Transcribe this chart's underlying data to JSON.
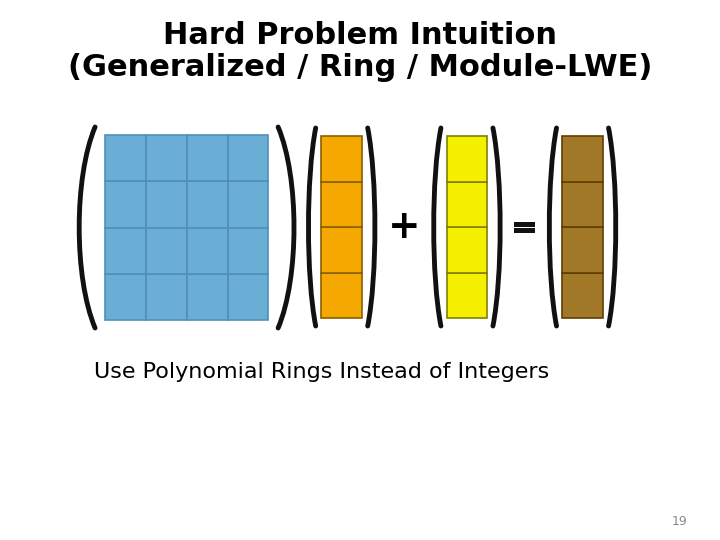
{
  "title_line1": "Hard Problem Intuition",
  "title_line2": "(Generalized / Ring / Module-LWE)",
  "subtitle": "Use Polynomial Rings Instead of Integers",
  "page_number": "19",
  "bg_color": "#ffffff",
  "title_fontsize": 22,
  "subtitle_fontsize": 16,
  "page_fontsize": 9,
  "matrix_color": "#6aaed6",
  "matrix_border_color": "#5090b8",
  "matrix_rows": 4,
  "matrix_cols": 4,
  "vec_a_color": "#f5a800",
  "vec_a_border": "#8a6000",
  "vec_b_color": "#f5f000",
  "vec_b_border": "#808000",
  "vec_c_color": "#a07828",
  "vec_c_border": "#604000",
  "vec_rows": 4,
  "operator_fontsize": 28,
  "paren_lw": 3.5,
  "paren_color": "#111111"
}
